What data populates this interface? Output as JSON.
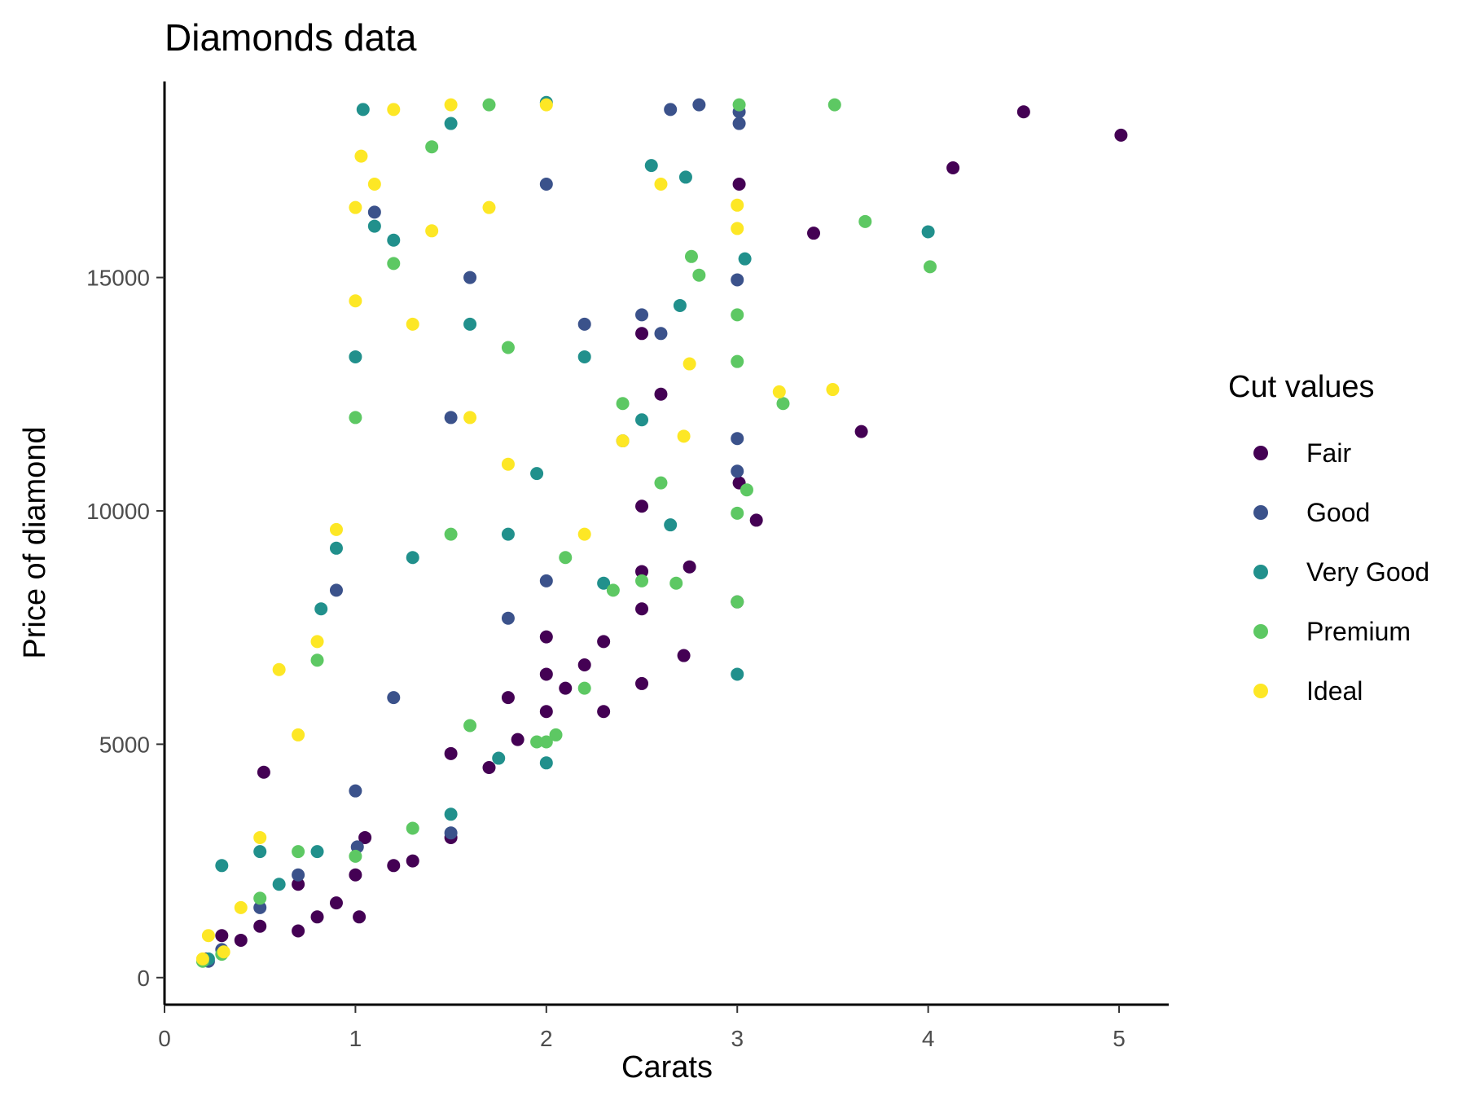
{
  "chart_data": {
    "type": "scatter",
    "title": "Diamonds data",
    "xlabel": "Carats",
    "ylabel": "Price of diamond",
    "xlim": [
      0.0,
      5.26
    ],
    "ylim": [
      -580,
      19200
    ],
    "x_ticks": [
      0,
      1,
      2,
      3,
      4,
      5
    ],
    "y_ticks": [
      0,
      5000,
      10000,
      15000
    ],
    "grid": false,
    "legend": {
      "title": "Cut values",
      "position": "right",
      "items": [
        {
          "label": "Fair",
          "color": "#440154"
        },
        {
          "label": "Good",
          "color": "#3B528B"
        },
        {
          "label": "Very Good",
          "color": "#21908C"
        },
        {
          "label": "Premium",
          "color": "#5DC863"
        },
        {
          "label": "Ideal",
          "color": "#FDE725"
        }
      ]
    },
    "series": [
      {
        "name": "Fair",
        "points": [
          [
            0.22,
            400
          ],
          [
            0.3,
            900
          ],
          [
            0.4,
            800
          ],
          [
            0.5,
            1100
          ],
          [
            0.52,
            4400
          ],
          [
            0.7,
            1000
          ],
          [
            0.7,
            2000
          ],
          [
            0.8,
            1300
          ],
          [
            0.9,
            1600
          ],
          [
            1.0,
            2200
          ],
          [
            1.02,
            1300
          ],
          [
            1.05,
            3000
          ],
          [
            1.2,
            2400
          ],
          [
            1.3,
            2500
          ],
          [
            1.5,
            3000
          ],
          [
            1.5,
            4800
          ],
          [
            1.7,
            4500
          ],
          [
            1.8,
            6000
          ],
          [
            1.85,
            5100
          ],
          [
            2.0,
            5700
          ],
          [
            2.0,
            6500
          ],
          [
            2.0,
            7300
          ],
          [
            2.1,
            6200
          ],
          [
            2.2,
            6700
          ],
          [
            2.3,
            5700
          ],
          [
            2.3,
            7200
          ],
          [
            2.5,
            6300
          ],
          [
            2.5,
            7900
          ],
          [
            2.5,
            8700
          ],
          [
            2.5,
            10100
          ],
          [
            2.5,
            13800
          ],
          [
            2.6,
            12500
          ],
          [
            2.72,
            6900
          ],
          [
            2.75,
            8800
          ],
          [
            3.0,
            8050
          ],
          [
            3.01,
            10600
          ],
          [
            3.01,
            17000
          ],
          [
            3.1,
            9800
          ],
          [
            3.4,
            15950
          ],
          [
            3.65,
            11700
          ],
          [
            4.13,
            17350
          ],
          [
            4.5,
            18550
          ],
          [
            5.01,
            18050
          ]
        ]
      },
      {
        "name": "Good",
        "points": [
          [
            0.23,
            350
          ],
          [
            0.3,
            600
          ],
          [
            0.5,
            1500
          ],
          [
            0.7,
            2200
          ],
          [
            0.9,
            8300
          ],
          [
            1.0,
            4000
          ],
          [
            1.01,
            2800
          ],
          [
            1.1,
            16400
          ],
          [
            1.2,
            6000
          ],
          [
            1.5,
            3100
          ],
          [
            1.5,
            12000
          ],
          [
            1.6,
            15000
          ],
          [
            1.8,
            7700
          ],
          [
            2.0,
            8500
          ],
          [
            2.0,
            17000
          ],
          [
            2.2,
            14000
          ],
          [
            2.4,
            11500
          ],
          [
            2.5,
            14200
          ],
          [
            2.6,
            13800
          ],
          [
            2.65,
            18600
          ],
          [
            2.8,
            18700
          ],
          [
            3.0,
            10850
          ],
          [
            3.0,
            11550
          ],
          [
            3.0,
            14950
          ],
          [
            3.01,
            18300
          ],
          [
            3.01,
            18550
          ]
        ]
      },
      {
        "name": "Very Good",
        "points": [
          [
            0.23,
            400
          ],
          [
            0.3,
            2400
          ],
          [
            0.5,
            2700
          ],
          [
            0.6,
            2000
          ],
          [
            0.8,
            2700
          ],
          [
            0.82,
            7900
          ],
          [
            0.9,
            9200
          ],
          [
            1.0,
            13300
          ],
          [
            1.04,
            18600
          ],
          [
            1.1,
            16100
          ],
          [
            1.2,
            15800
          ],
          [
            1.3,
            9000
          ],
          [
            1.5,
            3500
          ],
          [
            1.5,
            18300
          ],
          [
            1.6,
            14000
          ],
          [
            1.75,
            4700
          ],
          [
            1.8,
            9500
          ],
          [
            1.95,
            10800
          ],
          [
            2.0,
            4600
          ],
          [
            2.0,
            18750
          ],
          [
            2.2,
            13300
          ],
          [
            2.3,
            8450
          ],
          [
            2.5,
            11950
          ],
          [
            2.55,
            17400
          ],
          [
            2.65,
            9700
          ],
          [
            2.7,
            14400
          ],
          [
            2.73,
            17150
          ],
          [
            3.0,
            6500
          ],
          [
            3.04,
            15400
          ],
          [
            4.0,
            15980
          ]
        ]
      },
      {
        "name": "Premium",
        "points": [
          [
            0.2,
            350
          ],
          [
            0.3,
            500
          ],
          [
            0.5,
            1700
          ],
          [
            0.7,
            2700
          ],
          [
            0.8,
            6800
          ],
          [
            1.0,
            2600
          ],
          [
            1.0,
            12000
          ],
          [
            1.2,
            15300
          ],
          [
            1.3,
            3200
          ],
          [
            1.4,
            17800
          ],
          [
            1.5,
            9500
          ],
          [
            1.6,
            5400
          ],
          [
            1.7,
            18700
          ],
          [
            1.8,
            13500
          ],
          [
            1.95,
            5050
          ],
          [
            2.0,
            5050
          ],
          [
            2.05,
            5200
          ],
          [
            2.1,
            9000
          ],
          [
            2.2,
            6200
          ],
          [
            2.35,
            8300
          ],
          [
            2.4,
            12300
          ],
          [
            2.5,
            8500
          ],
          [
            2.6,
            10600
          ],
          [
            2.68,
            8450
          ],
          [
            2.76,
            15450
          ],
          [
            2.8,
            15050
          ],
          [
            3.0,
            8050
          ],
          [
            3.0,
            9950
          ],
          [
            3.0,
            13200
          ],
          [
            3.0,
            14200
          ],
          [
            3.01,
            18700
          ],
          [
            3.05,
            10450
          ],
          [
            3.24,
            12300
          ],
          [
            3.51,
            18700
          ],
          [
            3.67,
            16200
          ],
          [
            4.01,
            15230
          ]
        ]
      },
      {
        "name": "Ideal",
        "points": [
          [
            0.2,
            400
          ],
          [
            0.23,
            900
          ],
          [
            0.31,
            550
          ],
          [
            0.4,
            1500
          ],
          [
            0.5,
            3000
          ],
          [
            0.6,
            6600
          ],
          [
            0.7,
            5200
          ],
          [
            0.8,
            7200
          ],
          [
            0.9,
            9600
          ],
          [
            1.0,
            16500
          ],
          [
            1.0,
            14500
          ],
          [
            1.03,
            17600
          ],
          [
            1.1,
            17000
          ],
          [
            1.2,
            18600
          ],
          [
            1.3,
            14000
          ],
          [
            1.4,
            16000
          ],
          [
            1.5,
            18700
          ],
          [
            1.6,
            12000
          ],
          [
            1.7,
            16500
          ],
          [
            1.8,
            11000
          ],
          [
            2.0,
            18700
          ],
          [
            2.2,
            9500
          ],
          [
            2.4,
            11500
          ],
          [
            2.6,
            17000
          ],
          [
            2.72,
            11600
          ],
          [
            2.75,
            13150
          ],
          [
            3.0,
            16050
          ],
          [
            3.0,
            16550
          ],
          [
            3.22,
            12550
          ],
          [
            3.5,
            12600
          ]
        ]
      }
    ]
  }
}
